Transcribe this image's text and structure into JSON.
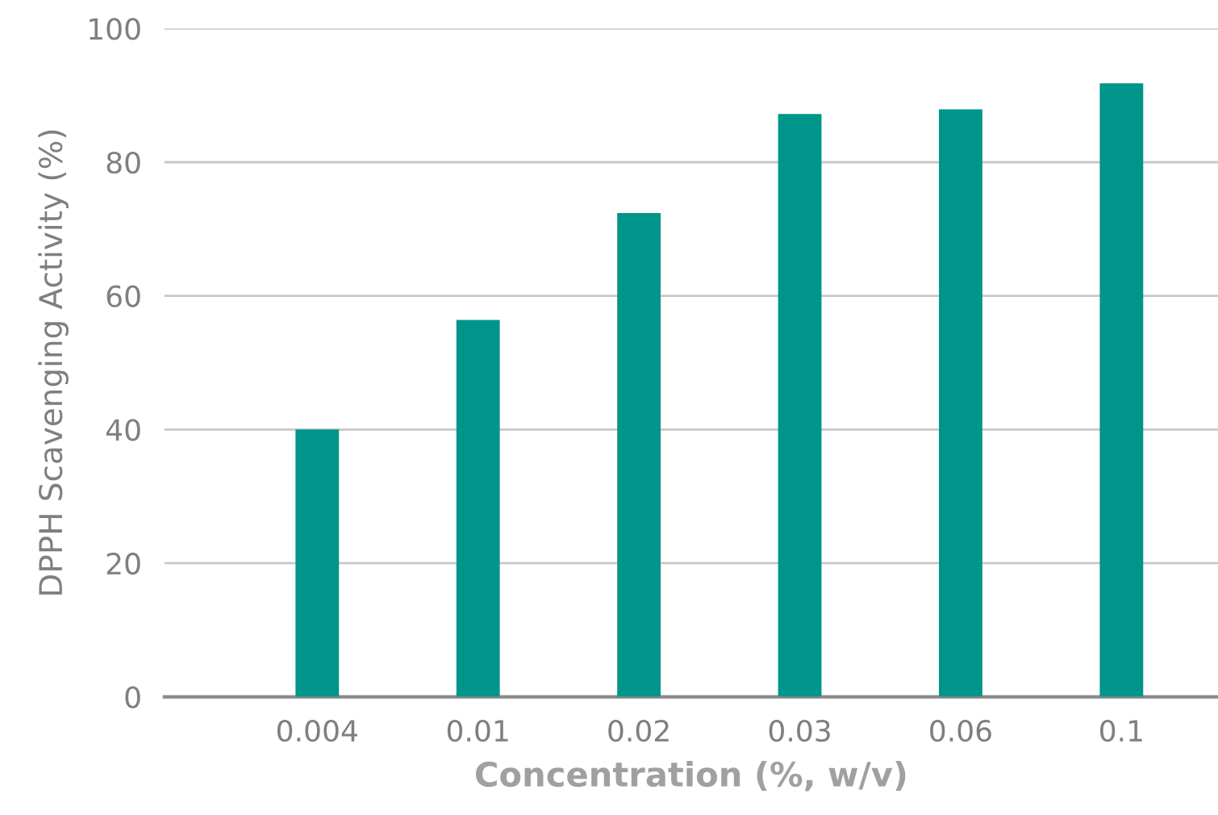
{
  "chart_data": {
    "type": "bar",
    "xlabel": "Concentration (%, w/v)",
    "ylabel": "DPPH Scavenging Activity (%)",
    "categories": [
      "0.004",
      "0.01",
      "0.02",
      "0.03",
      "0.06",
      "0.1"
    ],
    "values": [
      40,
      56.4,
      72.4,
      87.2,
      87.9,
      91.8
    ],
    "color": "#00958b",
    "ylim": [
      0,
      100
    ],
    "yticks": [
      0,
      20,
      40,
      60,
      80,
      100
    ],
    "grid": "y"
  }
}
